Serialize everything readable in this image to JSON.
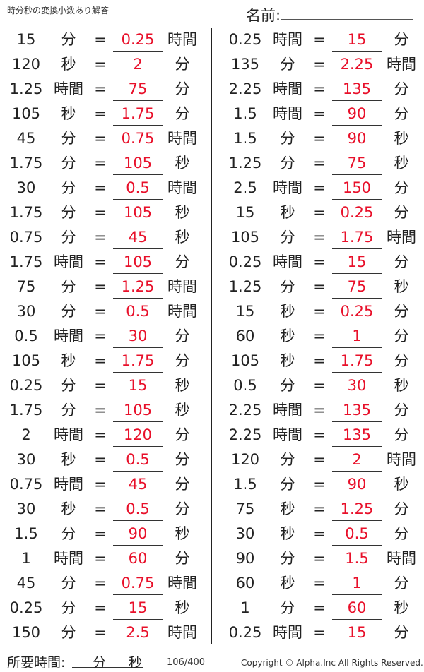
{
  "title": "時分秒の変換小数あり解答",
  "name_label": "名前:",
  "equals": "=",
  "left_rows": [
    [
      "15",
      "分",
      "0.25",
      "時間"
    ],
    [
      "120",
      "秒",
      "2",
      "分"
    ],
    [
      "1.25",
      "時間",
      "75",
      "分"
    ],
    [
      "105",
      "秒",
      "1.75",
      "分"
    ],
    [
      "45",
      "分",
      "0.75",
      "時間"
    ],
    [
      "1.75",
      "分",
      "105",
      "秒"
    ],
    [
      "30",
      "分",
      "0.5",
      "時間"
    ],
    [
      "1.75",
      "分",
      "105",
      "秒"
    ],
    [
      "0.75",
      "分",
      "45",
      "秒"
    ],
    [
      "1.75",
      "時間",
      "105",
      "分"
    ],
    [
      "75",
      "分",
      "1.25",
      "時間"
    ],
    [
      "30",
      "分",
      "0.5",
      "時間"
    ],
    [
      "0.5",
      "時間",
      "30",
      "分"
    ],
    [
      "105",
      "秒",
      "1.75",
      "分"
    ],
    [
      "0.25",
      "分",
      "15",
      "秒"
    ],
    [
      "1.75",
      "分",
      "105",
      "秒"
    ],
    [
      "2",
      "時間",
      "120",
      "分"
    ],
    [
      "30",
      "秒",
      "0.5",
      "分"
    ],
    [
      "0.75",
      "時間",
      "45",
      "分"
    ],
    [
      "30",
      "秒",
      "0.5",
      "分"
    ],
    [
      "1.5",
      "分",
      "90",
      "秒"
    ],
    [
      "1",
      "時間",
      "60",
      "分"
    ],
    [
      "45",
      "分",
      "0.75",
      "時間"
    ],
    [
      "0.25",
      "分",
      "15",
      "秒"
    ],
    [
      "150",
      "分",
      "2.5",
      "時間"
    ]
  ],
  "right_rows": [
    [
      "0.25",
      "時間",
      "15",
      "分"
    ],
    [
      "135",
      "分",
      "2.25",
      "時間"
    ],
    [
      "2.25",
      "時間",
      "135",
      "分"
    ],
    [
      "1.5",
      "時間",
      "90",
      "分"
    ],
    [
      "1.5",
      "分",
      "90",
      "秒"
    ],
    [
      "1.25",
      "分",
      "75",
      "秒"
    ],
    [
      "2.5",
      "時間",
      "150",
      "分"
    ],
    [
      "15",
      "秒",
      "0.25",
      "分"
    ],
    [
      "105",
      "分",
      "1.75",
      "時間"
    ],
    [
      "0.25",
      "時間",
      "15",
      "分"
    ],
    [
      "1.25",
      "分",
      "75",
      "秒"
    ],
    [
      "15",
      "秒",
      "0.25",
      "分"
    ],
    [
      "60",
      "秒",
      "1",
      "分"
    ],
    [
      "105",
      "秒",
      "1.75",
      "分"
    ],
    [
      "0.5",
      "分",
      "30",
      "秒"
    ],
    [
      "2.25",
      "時間",
      "135",
      "分"
    ],
    [
      "2.25",
      "時間",
      "135",
      "分"
    ],
    [
      "120",
      "分",
      "2",
      "時間"
    ],
    [
      "1.5",
      "分",
      "90",
      "秒"
    ],
    [
      "75",
      "秒",
      "1.25",
      "分"
    ],
    [
      "30",
      "秒",
      "0.5",
      "分"
    ],
    [
      "90",
      "分",
      "1.5",
      "時間"
    ],
    [
      "60",
      "秒",
      "1",
      "分"
    ],
    [
      "1",
      "分",
      "60",
      "秒"
    ],
    [
      "0.25",
      "時間",
      "15",
      "分"
    ]
  ],
  "footer": {
    "time_label": "所要時間:",
    "minutes": "分",
    "seconds": "秒",
    "page": "106/400",
    "copyright": "Copyright © Alpha.Inc All Rights Reserved."
  },
  "colors": {
    "answer": "#e8102a",
    "text": "#222222"
  }
}
